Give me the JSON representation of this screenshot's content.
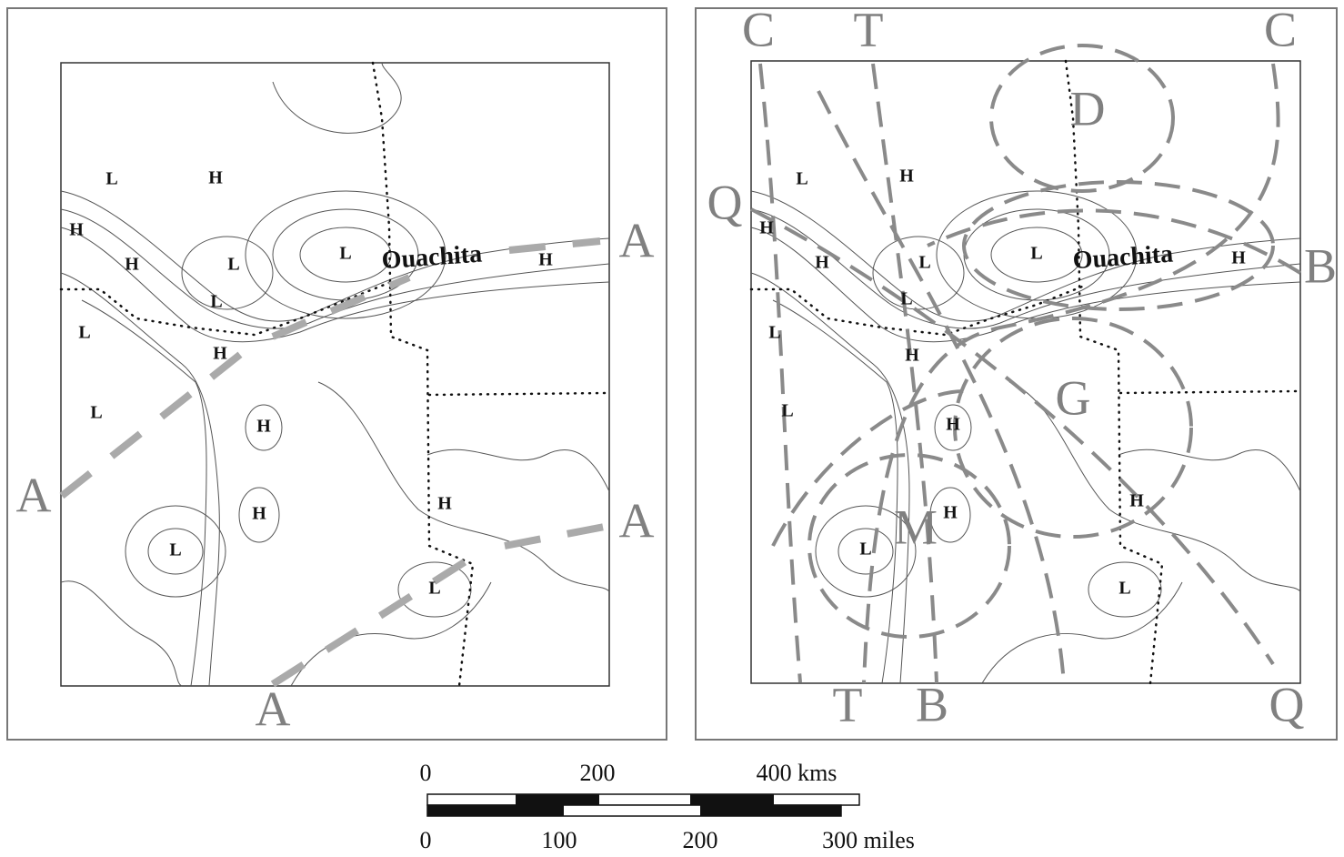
{
  "left_panel": {
    "labels": [
      "L",
      "H",
      "H",
      "H",
      "L",
      "L",
      "L",
      "L",
      "H",
      "L",
      "H",
      "H",
      "H",
      "L",
      "L",
      "H"
    ],
    "place": "Ouachita",
    "line_labels": [
      "A",
      "A",
      "A",
      "A"
    ]
  },
  "right_panel": {
    "labels": [
      "L",
      "H",
      "H",
      "H",
      "L",
      "L",
      "L",
      "L",
      "H",
      "L",
      "H",
      "H",
      "H",
      "L",
      "L",
      "H"
    ],
    "place": "Ouachita",
    "line_labels": [
      "C",
      "T",
      "C",
      "Q",
      "B",
      "T",
      "B",
      "Q"
    ],
    "region_labels": [
      "D",
      "G",
      "M"
    ]
  },
  "scale_bar": {
    "km_labels": [
      "0",
      "200",
      "400 kms"
    ],
    "mile_labels": [
      "0",
      "100",
      "200",
      "300 miles"
    ]
  }
}
